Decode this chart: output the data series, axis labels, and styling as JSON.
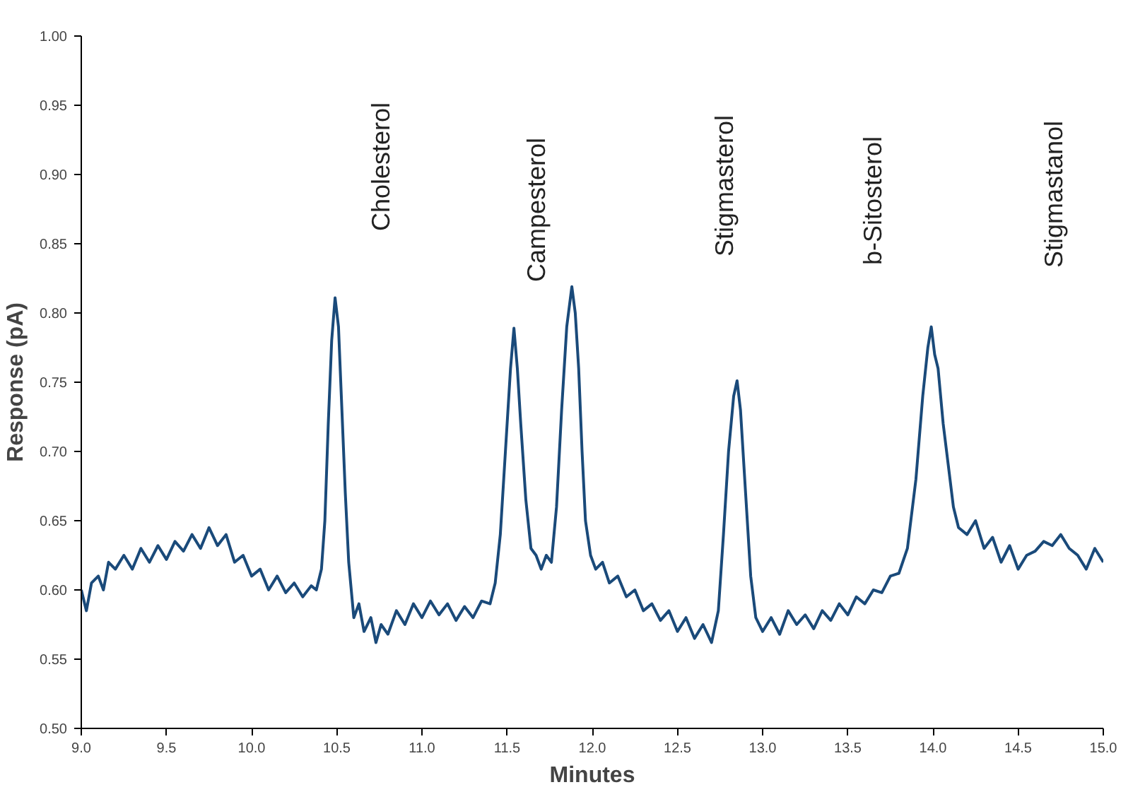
{
  "chart_data": {
    "type": "line",
    "xlabel": "Minutes",
    "ylabel": "Response (pA)",
    "grid": false,
    "marker": "none",
    "line_style": "solid",
    "xlim": [
      9.0,
      15.0
    ],
    "ylim": [
      0.5,
      1.0
    ],
    "xticks": [
      {
        "value": 9.0,
        "label": "9.0"
      },
      {
        "value": 9.5,
        "label": "9.5"
      },
      {
        "value": 10.0,
        "label": "10.0"
      },
      {
        "value": 10.5,
        "label": "10.5"
      },
      {
        "value": 11.0,
        "label": "11.0"
      },
      {
        "value": 11.5,
        "label": "11.5"
      },
      {
        "value": 12.0,
        "label": "12.0"
      },
      {
        "value": 12.5,
        "label": "12.5"
      },
      {
        "value": 13.0,
        "label": "13.0"
      },
      {
        "value": 13.5,
        "label": "13.5"
      },
      {
        "value": 14.0,
        "label": "14.0"
      },
      {
        "value": 14.5,
        "label": "14.5"
      },
      {
        "value": 15.0,
        "label": "15.0"
      }
    ],
    "yticks": [
      {
        "value": 0.5,
        "label": "0.50"
      },
      {
        "value": 0.55,
        "label": "0.55"
      },
      {
        "value": 0.6,
        "label": "0.60"
      },
      {
        "value": 0.65,
        "label": "0.65"
      },
      {
        "value": 0.7,
        "label": "0.70"
      },
      {
        "value": 0.75,
        "label": "0.75"
      },
      {
        "value": 0.8,
        "label": "0.80"
      },
      {
        "value": 0.85,
        "label": "0.85"
      },
      {
        "value": 0.9,
        "label": "0.90"
      },
      {
        "value": 0.95,
        "label": "0.95"
      },
      {
        "value": 1.0,
        "label": "1.00"
      }
    ],
    "annotations": [
      "Cholesterol",
      "Campesterol",
      "Stigmasterol",
      "b-Sitosterol",
      "Stigmastanol"
    ],
    "x": [
      9.0,
      9.03,
      9.06,
      9.1,
      9.13,
      9.16,
      9.2,
      9.25,
      9.3,
      9.35,
      9.4,
      9.45,
      9.5,
      9.55,
      9.6,
      9.65,
      9.7,
      9.75,
      9.8,
      9.85,
      9.9,
      9.95,
      10.0,
      10.05,
      10.1,
      10.15,
      10.2,
      10.25,
      10.3,
      10.35,
      10.38,
      10.41,
      10.43,
      10.45,
      10.47,
      10.49,
      10.51,
      10.53,
      10.55,
      10.57,
      10.6,
      10.63,
      10.66,
      10.7,
      10.73,
      10.76,
      10.8,
      10.85,
      10.9,
      10.95,
      11.0,
      11.05,
      11.1,
      11.15,
      11.2,
      11.25,
      11.3,
      11.35,
      11.4,
      11.43,
      11.46,
      11.49,
      11.52,
      11.54,
      11.56,
      11.58,
      11.61,
      11.64,
      11.67,
      11.7,
      11.73,
      11.76,
      11.79,
      11.82,
      11.85,
      11.88,
      11.9,
      11.92,
      11.94,
      11.96,
      11.99,
      12.02,
      12.06,
      12.1,
      12.15,
      12.2,
      12.25,
      12.3,
      12.35,
      12.4,
      12.45,
      12.5,
      12.55,
      12.6,
      12.65,
      12.7,
      12.74,
      12.77,
      12.8,
      12.83,
      12.85,
      12.87,
      12.9,
      12.93,
      12.96,
      13.0,
      13.05,
      13.1,
      13.15,
      13.2,
      13.25,
      13.3,
      13.35,
      13.4,
      13.45,
      13.5,
      13.55,
      13.6,
      13.65,
      13.7,
      13.75,
      13.8,
      13.85,
      13.9,
      13.94,
      13.97,
      13.99,
      14.01,
      14.03,
      14.06,
      14.09,
      14.12,
      14.15,
      14.2,
      14.25,
      14.3,
      14.35,
      14.4,
      14.45,
      14.5,
      14.55,
      14.6,
      14.65,
      14.7,
      14.75,
      14.8,
      14.85,
      14.9,
      14.95,
      15.0
    ],
    "series": [
      {
        "color": "#1a4a7a",
        "values": [
          0.6,
          0.585,
          0.605,
          0.61,
          0.6,
          0.62,
          0.615,
          0.625,
          0.615,
          0.63,
          0.62,
          0.632,
          0.622,
          0.635,
          0.628,
          0.64,
          0.63,
          0.645,
          0.632,
          0.64,
          0.62,
          0.625,
          0.61,
          0.615,
          0.6,
          0.61,
          0.598,
          0.605,
          0.595,
          0.603,
          0.6,
          0.615,
          0.65,
          0.72,
          0.78,
          0.811,
          0.79,
          0.73,
          0.67,
          0.62,
          0.58,
          0.59,
          0.57,
          0.58,
          0.562,
          0.575,
          0.568,
          0.585,
          0.575,
          0.59,
          0.58,
          0.592,
          0.582,
          0.59,
          0.578,
          0.588,
          0.58,
          0.592,
          0.59,
          0.605,
          0.64,
          0.7,
          0.76,
          0.789,
          0.76,
          0.72,
          0.665,
          0.63,
          0.625,
          0.615,
          0.625,
          0.62,
          0.66,
          0.73,
          0.79,
          0.819,
          0.8,
          0.76,
          0.7,
          0.65,
          0.625,
          0.615,
          0.62,
          0.605,
          0.61,
          0.595,
          0.6,
          0.585,
          0.59,
          0.578,
          0.585,
          0.57,
          0.58,
          0.565,
          0.575,
          0.562,
          0.585,
          0.64,
          0.7,
          0.74,
          0.751,
          0.73,
          0.67,
          0.61,
          0.58,
          0.57,
          0.58,
          0.568,
          0.585,
          0.575,
          0.582,
          0.572,
          0.585,
          0.578,
          0.59,
          0.582,
          0.595,
          0.59,
          0.6,
          0.598,
          0.61,
          0.612,
          0.63,
          0.68,
          0.74,
          0.775,
          0.79,
          0.77,
          0.76,
          0.72,
          0.69,
          0.66,
          0.645,
          0.64,
          0.65,
          0.63,
          0.638,
          0.62,
          0.632,
          0.615,
          0.625,
          0.628,
          0.635,
          0.632,
          0.64,
          0.63,
          0.625,
          0.615,
          0.63,
          0.62
        ]
      }
    ]
  }
}
